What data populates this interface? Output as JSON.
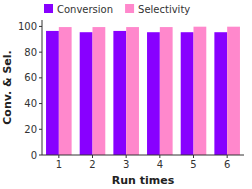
{
  "chart_data": {
    "type": "bar",
    "xlabel": "Run times",
    "ylabel": "Conv. & Sel.",
    "categories": [
      "1",
      "2",
      "3",
      "4",
      "5",
      "6"
    ],
    "series": [
      {
        "name": "Conversion",
        "color": "#8800ff",
        "values": [
          96.5,
          95.5,
          96.5,
          95.5,
          95.5,
          95.5
        ]
      },
      {
        "name": "Selectivity",
        "color": "#ff88cc",
        "values": [
          99.5,
          99.5,
          99.5,
          99.5,
          99.8,
          99.8
        ]
      }
    ],
    "ylim": [
      0,
      105
    ],
    "yticks": [
      0,
      20,
      40,
      60,
      80,
      100
    ],
    "grid": false,
    "legend": "upper left"
  }
}
